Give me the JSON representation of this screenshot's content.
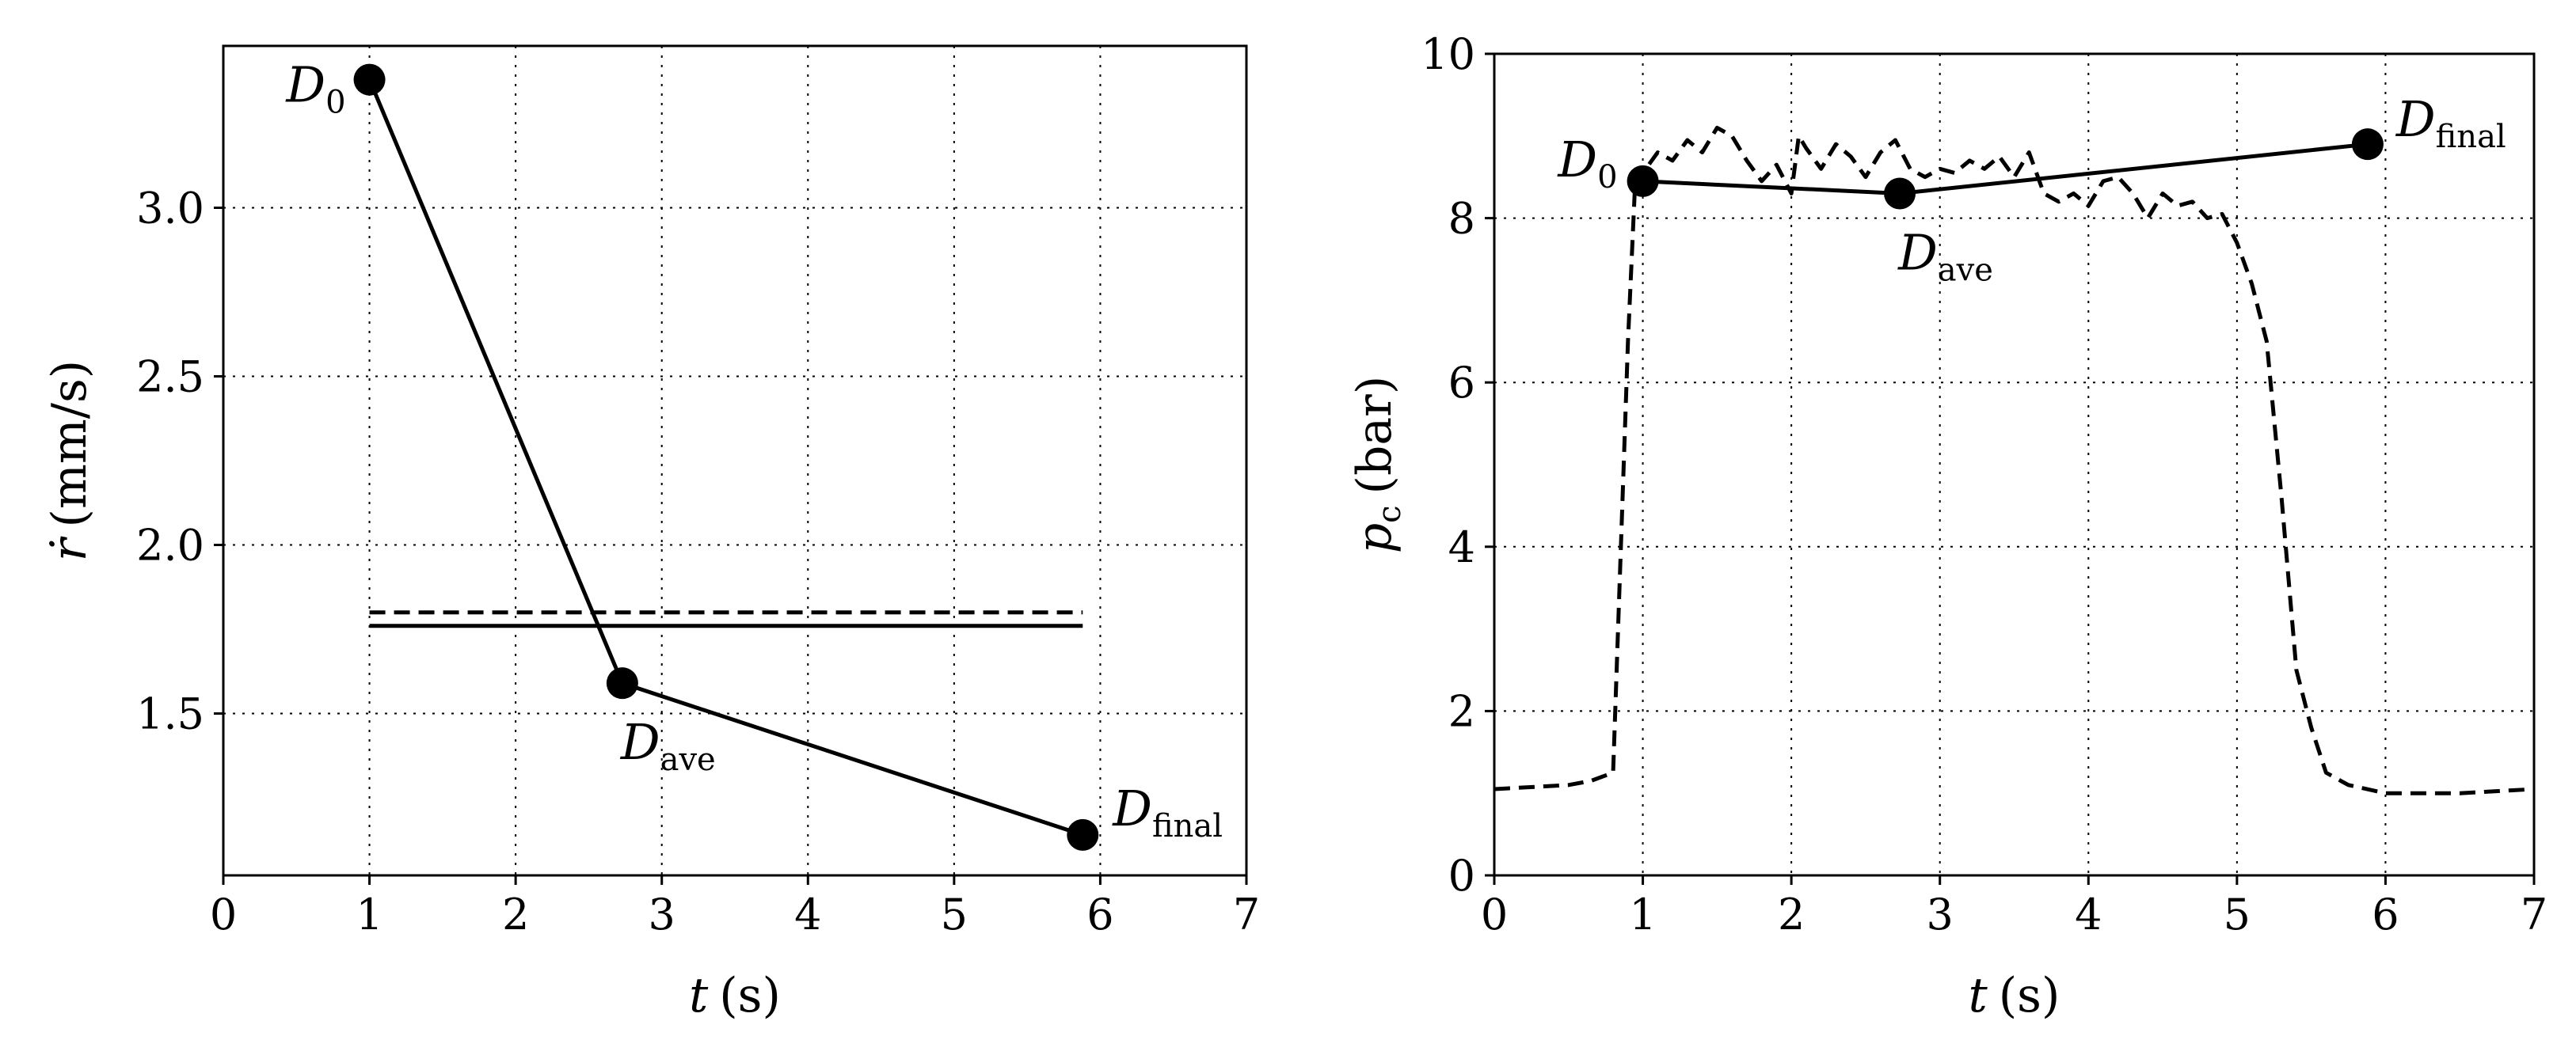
{
  "chart_data": [
    {
      "type": "line",
      "panel": "left",
      "xlabel_var": "t",
      "xlabel_unit": "(s)",
      "ylabel_var": "ṙ",
      "ylabel_unit": "(mm/s)",
      "xlim": [
        0,
        7
      ],
      "ylim": [
        1.02,
        3.48
      ],
      "xticks": [
        "0",
        "1",
        "2",
        "3",
        "4",
        "5",
        "6",
        "7"
      ],
      "xtick_values": [
        0,
        1,
        2,
        3,
        4,
        5,
        6,
        7
      ],
      "yticks": [
        "1.5",
        "2.0",
        "2.5",
        "3.0"
      ],
      "ytick_values": [
        1.5,
        2.0,
        2.5,
        3.0
      ],
      "grid": true,
      "series": [
        {
          "name": "markers",
          "style": "solid-with-markers",
          "x": [
            1.0,
            2.73,
            5.88
          ],
          "y": [
            3.38,
            1.59,
            1.14
          ]
        },
        {
          "name": "dashed-reference",
          "style": "dashed",
          "x": [
            1.0,
            5.88
          ],
          "y": [
            1.8,
            1.8
          ]
        },
        {
          "name": "solid-reference",
          "style": "solid",
          "x": [
            1.0,
            5.88
          ],
          "y": [
            1.76,
            1.76
          ]
        }
      ],
      "annotations": [
        {
          "base": "D",
          "sub": "0",
          "x": 1.0,
          "y": 3.38,
          "anchor": "left"
        },
        {
          "base": "D",
          "sub": "ave",
          "x": 2.73,
          "y": 1.59,
          "anchor": "below"
        },
        {
          "base": "D",
          "sub": "final",
          "x": 5.88,
          "y": 1.14,
          "anchor": "right"
        }
      ]
    },
    {
      "type": "line",
      "panel": "right",
      "xlabel_var": "t",
      "xlabel_unit": "(s)",
      "ylabel_var": "p",
      "ylabel_sub": "c",
      "ylabel_unit": "(bar)",
      "xlim": [
        0,
        7
      ],
      "ylim": [
        0,
        10
      ],
      "xticks": [
        "0",
        "1",
        "2",
        "3",
        "4",
        "5",
        "6",
        "7"
      ],
      "xtick_values": [
        0,
        1,
        2,
        3,
        4,
        5,
        6,
        7
      ],
      "yticks": [
        "0",
        "2",
        "4",
        "6",
        "8",
        "10"
      ],
      "ytick_values": [
        0,
        2,
        4,
        6,
        8,
        10
      ],
      "grid": true,
      "series": [
        {
          "name": "pressure-trace",
          "style": "dashed",
          "x": [
            0,
            0.3,
            0.5,
            0.65,
            0.8,
            0.9,
            0.95,
            1.0,
            1.1,
            1.2,
            1.3,
            1.4,
            1.5,
            1.6,
            1.7,
            1.8,
            1.9,
            2.0,
            2.05,
            2.1,
            2.2,
            2.3,
            2.4,
            2.5,
            2.6,
            2.7,
            2.8,
            2.9,
            3.0,
            3.1,
            3.2,
            3.3,
            3.4,
            3.5,
            3.6,
            3.7,
            3.8,
            3.9,
            4.0,
            4.1,
            4.2,
            4.3,
            4.4,
            4.5,
            4.6,
            4.7,
            4.8,
            4.9,
            5.0,
            5.1,
            5.2,
            5.3,
            5.4,
            5.5,
            5.6,
            5.7,
            5.75,
            6.0,
            6.5,
            7.0
          ],
          "y": [
            1.05,
            1.08,
            1.1,
            1.15,
            1.25,
            6.5,
            8.5,
            8.55,
            8.8,
            8.7,
            8.95,
            8.8,
            9.1,
            9.0,
            8.7,
            8.45,
            8.65,
            8.3,
            9.0,
            8.85,
            8.6,
            8.9,
            8.75,
            8.5,
            8.8,
            8.95,
            8.6,
            8.5,
            8.6,
            8.55,
            8.7,
            8.6,
            8.75,
            8.5,
            8.8,
            8.3,
            8.2,
            8.3,
            8.15,
            8.45,
            8.5,
            8.3,
            8.0,
            8.3,
            8.15,
            8.2,
            8.0,
            8.05,
            7.7,
            7.2,
            6.5,
            4.6,
            2.5,
            1.8,
            1.25,
            1.15,
            1.1,
            1.0,
            1.0,
            1.05
          ]
        },
        {
          "name": "markers",
          "style": "solid-with-markers",
          "x": [
            1.0,
            2.73,
            5.88
          ],
          "y": [
            8.45,
            8.3,
            8.9
          ]
        }
      ],
      "annotations": [
        {
          "base": "D",
          "sub": "0",
          "x": 1.0,
          "y": 8.45,
          "anchor": "upper-left"
        },
        {
          "base": "D",
          "sub": "ave",
          "x": 2.73,
          "y": 8.3,
          "anchor": "below"
        },
        {
          "base": "D",
          "sub": "final",
          "x": 5.88,
          "y": 8.9,
          "anchor": "upper-right"
        }
      ]
    }
  ]
}
